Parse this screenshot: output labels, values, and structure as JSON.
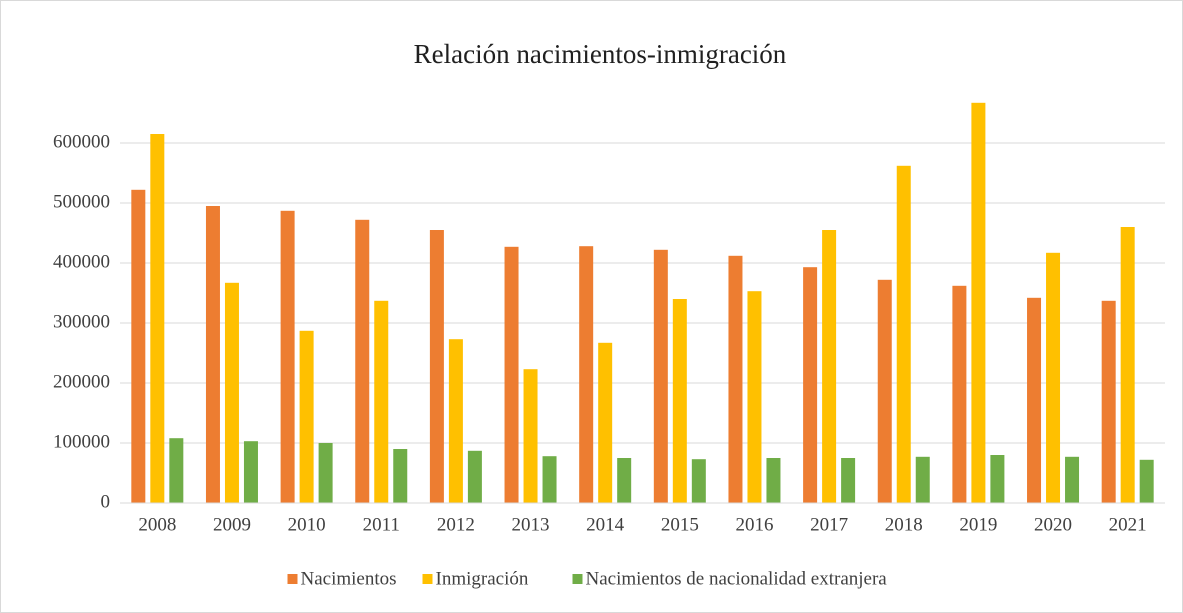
{
  "chart_data": {
    "type": "bar",
    "title": "Relación nacimientos-inmigración",
    "categories": [
      "2008",
      "2009",
      "2010",
      "2011",
      "2012",
      "2013",
      "2014",
      "2015",
      "2016",
      "2017",
      "2018",
      "2019",
      "2020",
      "2021"
    ],
    "series": [
      {
        "name": "Nacimientos",
        "color": "#ed7d31",
        "values": [
          522000,
          495000,
          487000,
          472000,
          455000,
          427000,
          428000,
          422000,
          412000,
          393000,
          372000,
          362000,
          342000,
          337000
        ]
      },
      {
        "name": "Inmigración",
        "color": "#ffc000",
        "values": [
          615000,
          367000,
          287000,
          337000,
          273000,
          223000,
          267000,
          340000,
          353000,
          455000,
          562000,
          667000,
          417000,
          460000
        ]
      },
      {
        "name": "Nacimientos de nacionalidad extranjera",
        "color": "#70ad47",
        "values": [
          108000,
          103000,
          100000,
          90000,
          87000,
          78000,
          75000,
          73000,
          75000,
          75000,
          77000,
          80000,
          77000,
          72000
        ]
      }
    ],
    "ylim": [
      0,
      700000
    ],
    "yticks": [
      0,
      100000,
      200000,
      300000,
      400000,
      500000,
      600000
    ],
    "grid": true,
    "legend": "bottom"
  }
}
